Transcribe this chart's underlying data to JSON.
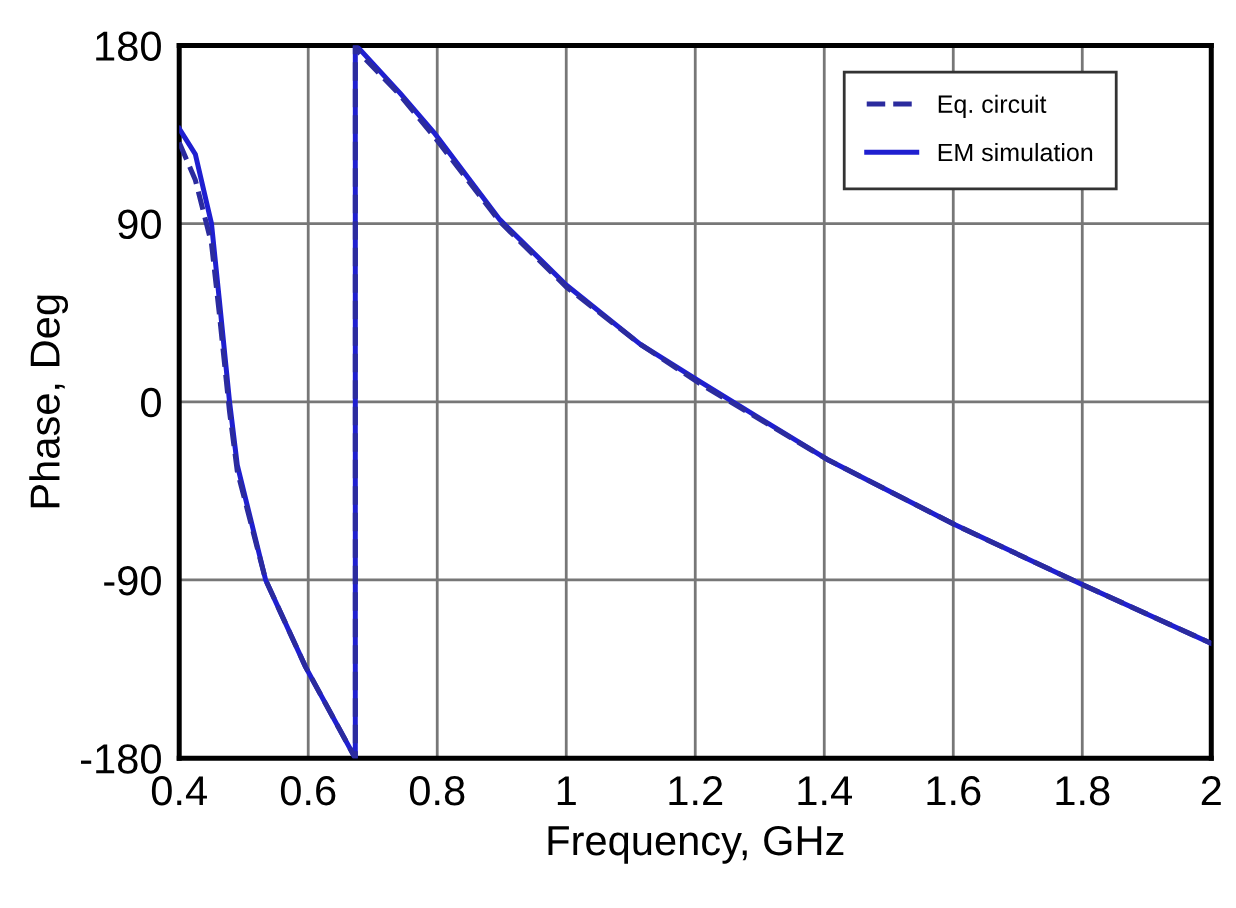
{
  "chart_data": {
    "type": "line",
    "xlabel": "Frequency, GHz",
    "ylabel": "Phase, Deg",
    "xlim": [
      0.4,
      2
    ],
    "xticks": [
      0.4,
      0.6,
      0.8,
      1,
      1.2,
      1.4,
      1.6,
      1.8,
      2
    ],
    "ylim": [
      -180,
      180
    ],
    "yticks": [
      -180,
      -90,
      0,
      90,
      180
    ],
    "grid": true,
    "legend": "top right",
    "marker": "none",
    "series": [
      {
        "name": "Eq. circuit",
        "color": "#2b2b9e",
        "line_style": "dashed",
        "x": [
          0.4,
          0.425,
          0.45,
          0.462,
          0.478,
          0.49,
          0.534,
          0.596,
          0.673,
          0.673,
          0.68,
          0.742,
          0.795,
          0.897,
          1.0,
          1.115,
          1.208,
          1.404,
          1.602,
          1.798,
          2.0
        ],
        "values": [
          131,
          112,
          80,
          45,
          -5,
          -35,
          -90,
          -134,
          -180,
          180,
          176,
          155,
          134,
          91,
          58,
          29,
          9,
          -29,
          -62,
          -92,
          -122
        ]
      },
      {
        "name": "EM simulation",
        "color": "#1f1fd0",
        "line_style": "solid",
        "x": [
          0.4,
          0.425,
          0.45,
          0.462,
          0.478,
          0.49,
          0.534,
          0.596,
          0.673,
          0.673,
          0.68,
          0.742,
          0.795,
          0.897,
          1.0,
          1.115,
          1.208,
          1.404,
          1.602,
          1.798,
          2.0
        ],
        "values": [
          138,
          125,
          90,
          52,
          0,
          -32,
          -90,
          -134,
          -180,
          180,
          178,
          156,
          136,
          92,
          59,
          29,
          10,
          -29,
          -62,
          -92,
          -122
        ]
      }
    ]
  }
}
